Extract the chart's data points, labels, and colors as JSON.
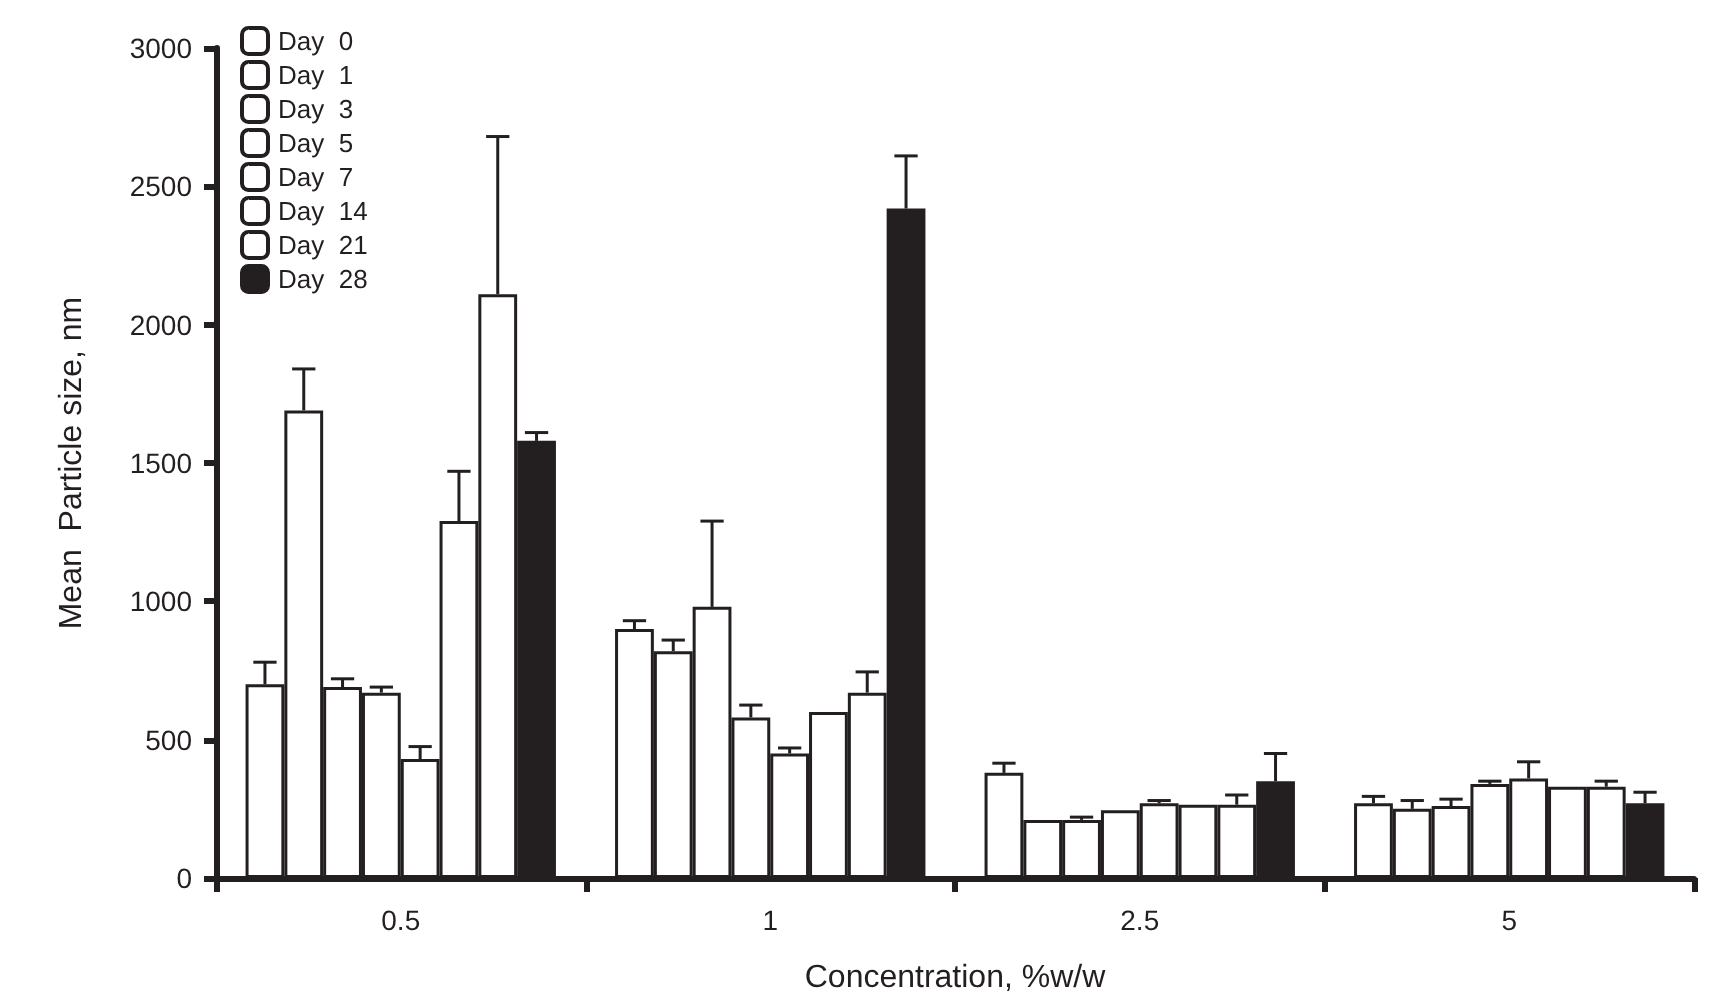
{
  "chart_data": {
    "type": "bar",
    "xlabel": "Concentration, %w/w",
    "ylabel": "Mean  Particle size, nm",
    "categories": [
      "0.5",
      "1",
      "2.5",
      "5"
    ],
    "series": [
      {
        "name": "Day  0",
        "color": "#ffffff",
        "values": [
          700,
          900,
          380,
          270
        ],
        "errors": [
          [
            700,
            780
          ],
          [
            900,
            930
          ],
          [
            380,
            415
          ],
          [
            270,
            295
          ]
        ]
      },
      {
        "name": "Day  1",
        "color": "#ffffff",
        "values": [
          1690,
          820,
          210,
          250
        ],
        "errors": [
          [
            1690,
            1840
          ],
          [
            820,
            860
          ],
          null,
          [
            250,
            280
          ]
        ]
      },
      {
        "name": "Day  3",
        "color": "#ffffff",
        "values": [
          690,
          980,
          210,
          260
        ],
        "errors": [
          [
            690,
            720
          ],
          [
            980,
            1290
          ],
          [
            210,
            220
          ],
          [
            260,
            285
          ]
        ]
      },
      {
        "name": "Day  5",
        "color": "#ffffff",
        "values": [
          670,
          580,
          245,
          340
        ],
        "errors": [
          [
            670,
            690
          ],
          [
            580,
            625
          ],
          null,
          [
            340,
            350
          ]
        ]
      },
      {
        "name": "Day  7",
        "color": "#ffffff",
        "values": [
          430,
          450,
          270,
          360
        ],
        "errors": [
          [
            430,
            475
          ],
          [
            450,
            470
          ],
          [
            270,
            280
          ],
          [
            360,
            420
          ]
        ]
      },
      {
        "name": "Day  14",
        "color": "#ffffff",
        "values": [
          1290,
          600,
          265,
          330
        ],
        "errors": [
          [
            1290,
            1470
          ],
          null,
          null,
          null
        ]
      },
      {
        "name": "Day  21",
        "color": "#ffffff",
        "values": [
          2110,
          670,
          265,
          330
        ],
        "errors": [
          [
            2110,
            2680
          ],
          [
            670,
            745
          ],
          [
            265,
            300
          ],
          [
            330,
            350
          ]
        ]
      },
      {
        "name": "Day  28",
        "color": "#231f20",
        "values": [
          1580,
          2420,
          350,
          270
        ],
        "errors": [
          [
            1580,
            1610
          ],
          [
            2420,
            2610
          ],
          [
            350,
            450
          ],
          [
            270,
            310
          ]
        ]
      }
    ],
    "ylim": [
      0,
      3000
    ],
    "yticks": [
      0,
      500,
      1000,
      1500,
      2000,
      2500,
      3000
    ],
    "grid": false,
    "legend": "top left"
  }
}
